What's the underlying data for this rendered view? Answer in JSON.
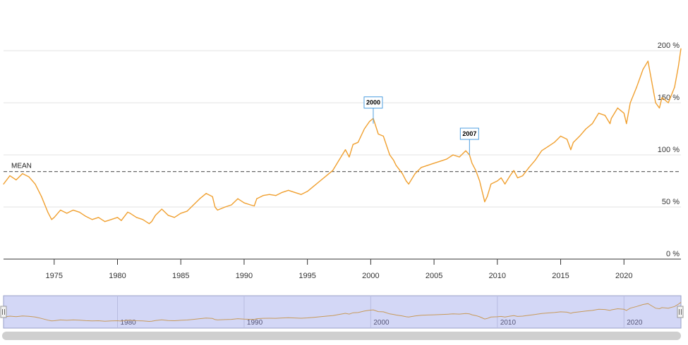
{
  "chart_data": {
    "type": "line",
    "series": [
      {
        "color": "#f0a030",
        "x": [
          1971.0,
          1971.5,
          1972.0,
          1972.5,
          1973.0,
          1973.5,
          1974.0,
          1974.5,
          1974.8,
          1975.0,
          1975.5,
          1976.0,
          1976.5,
          1977.0,
          1977.5,
          1978.0,
          1978.5,
          1979.0,
          1979.5,
          1980.0,
          1980.3,
          1980.8,
          1981.0,
          1981.5,
          1982.0,
          1982.5,
          1982.7,
          1983.0,
          1983.5,
          1984.0,
          1984.5,
          1985.0,
          1985.5,
          1986.0,
          1986.5,
          1987.0,
          1987.5,
          1987.7,
          1987.9,
          1988.5,
          1989.0,
          1989.5,
          1990.0,
          1990.5,
          1990.8,
          1991.0,
          1991.5,
          1992.0,
          1992.5,
          1993.0,
          1993.5,
          1994.0,
          1994.5,
          1995.0,
          1995.5,
          1996.0,
          1996.5,
          1997.0,
          1997.5,
          1998.0,
          1998.3,
          1998.6,
          1999.0,
          1999.5,
          1999.9,
          2000.2,
          2000.6,
          2001.0,
          2001.5,
          2001.8,
          2002.0,
          2002.5,
          2002.8,
          2003.0,
          2003.5,
          2004.0,
          2004.5,
          2005.0,
          2005.5,
          2006.0,
          2006.5,
          2007.0,
          2007.5,
          2007.8,
          2008.0,
          2008.3,
          2008.6,
          2008.8,
          2009.0,
          2009.2,
          2009.5,
          2010.0,
          2010.3,
          2010.6,
          2011.0,
          2011.3,
          2011.6,
          2012.0,
          2012.5,
          2013.0,
          2013.5,
          2014.0,
          2014.5,
          2015.0,
          2015.5,
          2015.8,
          2016.0,
          2016.5,
          2017.0,
          2017.5,
          2018.0,
          2018.5,
          2018.9,
          2019.0,
          2019.5,
          2020.0,
          2020.2,
          2020.5,
          2021.0,
          2021.5,
          2021.9,
          2022.2,
          2022.5,
          2022.8,
          2023.0,
          2023.5,
          2024.0,
          2024.3,
          2024.5
        ],
        "y": [
          72,
          80,
          76,
          82,
          79,
          72,
          60,
          45,
          38,
          40,
          47,
          44,
          47,
          45,
          41,
          38,
          40,
          36,
          38,
          40,
          37,
          45,
          44,
          40,
          38,
          34,
          36,
          42,
          48,
          42,
          40,
          44,
          46,
          52,
          58,
          63,
          60,
          50,
          47,
          50,
          52,
          58,
          54,
          52,
          51,
          58,
          61,
          62,
          61,
          64,
          66,
          64,
          62,
          65,
          70,
          75,
          80,
          85,
          95,
          105,
          98,
          110,
          112,
          125,
          132,
          135,
          120,
          118,
          100,
          95,
          90,
          82,
          75,
          72,
          82,
          88,
          90,
          92,
          94,
          96,
          100,
          98,
          104,
          100,
          92,
          85,
          75,
          65,
          55,
          60,
          72,
          75,
          78,
          72,
          80,
          85,
          78,
          80,
          88,
          95,
          104,
          108,
          112,
          118,
          115,
          105,
          112,
          118,
          125,
          130,
          140,
          138,
          130,
          135,
          145,
          140,
          130,
          150,
          165,
          182,
          190,
          170,
          150,
          145,
          155,
          150,
          165,
          185,
          202
        ]
      }
    ],
    "x_range": [
      1971.0,
      2024.5
    ],
    "ylim": [
      0,
      200
    ],
    "yticks": [
      {
        "value": 0,
        "label": "0 %"
      },
      {
        "value": 50,
        "label": "50 %"
      },
      {
        "value": 100,
        "label": "100 %"
      },
      {
        "value": 150,
        "label": "150 %"
      },
      {
        "value": 200,
        "label": "200 %"
      }
    ],
    "xticks": [
      {
        "value": 1975,
        "label": "1975"
      },
      {
        "value": 1980,
        "label": "1980"
      },
      {
        "value": 1985,
        "label": "1985"
      },
      {
        "value": 1990,
        "label": "1990"
      },
      {
        "value": 1995,
        "label": "1995"
      },
      {
        "value": 2000,
        "label": "2000"
      },
      {
        "value": 2005,
        "label": "2005"
      },
      {
        "value": 2010,
        "label": "2010"
      },
      {
        "value": 2015,
        "label": "2015"
      },
      {
        "value": 2020,
        "label": "2020"
      }
    ],
    "mean_line": {
      "label": "MEAN",
      "value": 84
    },
    "flags": [
      {
        "label": "2000",
        "x": 2000.2,
        "y": 130
      },
      {
        "label": "2007",
        "x": 2007.8,
        "y": 100
      }
    ],
    "navigator": {
      "labels": [
        {
          "value": 1980,
          "label": "1980"
        },
        {
          "value": 1990,
          "label": "1990"
        },
        {
          "value": 2000,
          "label": "2000"
        },
        {
          "value": 2010,
          "label": "2010"
        },
        {
          "value": 2020,
          "label": "2020"
        }
      ]
    },
    "grid": true,
    "legend": "none"
  },
  "colors": {
    "line": "#f0a030",
    "navigator_fill": "#cdd1f5",
    "flag_border": "#4f9fe0",
    "mean": "#555555"
  }
}
